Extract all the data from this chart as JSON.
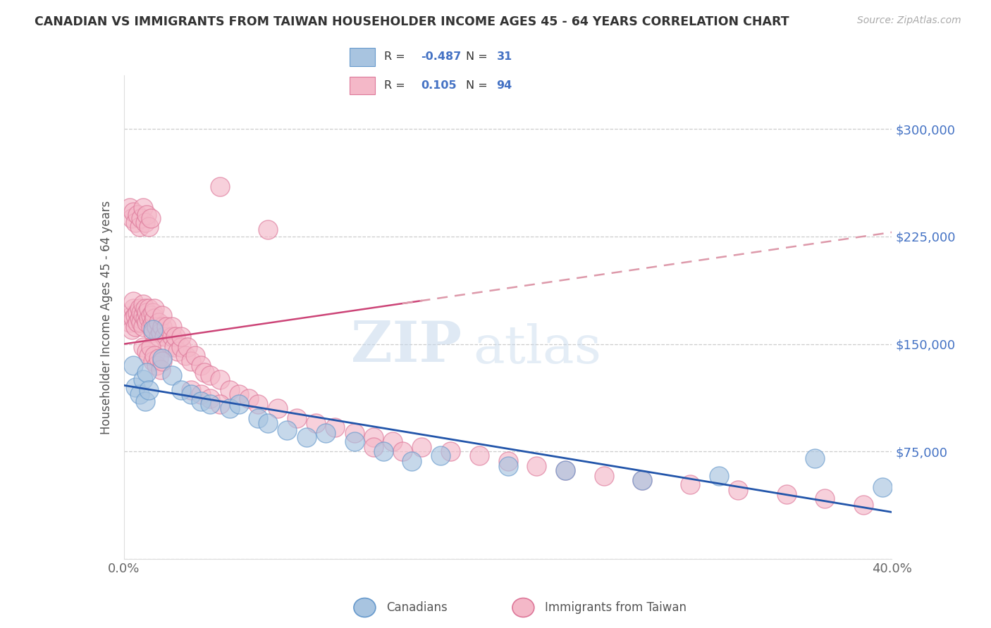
{
  "title": "CANADIAN VS IMMIGRANTS FROM TAIWAN HOUSEHOLDER INCOME AGES 45 - 64 YEARS CORRELATION CHART",
  "source": "Source: ZipAtlas.com",
  "ylabel": "Householder Income Ages 45 - 64 years",
  "xlim": [
    0,
    0.4
  ],
  "ylim": [
    0,
    337500
  ],
  "xticks": [
    0.0,
    0.05,
    0.1,
    0.15,
    0.2,
    0.25,
    0.3,
    0.35,
    0.4
  ],
  "xticklabels": [
    "0.0%",
    "",
    "",
    "",
    "",
    "",
    "",
    "",
    "40.0%"
  ],
  "yticks": [
    0,
    75000,
    150000,
    225000,
    300000
  ],
  "yticklabels": [
    "",
    "$75,000",
    "$150,000",
    "$225,000",
    "$300,000"
  ],
  "canadians_color": "#a8c4e0",
  "canadians_edge": "#6699cc",
  "taiwan_color": "#f4b8c8",
  "taiwan_edge": "#dd7799",
  "canadians_line_color": "#2255aa",
  "taiwan_line_color": "#cc4477",
  "taiwan_dashed_color": "#dd99aa",
  "watermark_zip": "ZIP",
  "watermark_atlas": "atlas",
  "canadians_x": [
    0.005,
    0.006,
    0.008,
    0.01,
    0.011,
    0.012,
    0.013,
    0.015,
    0.02,
    0.025,
    0.03,
    0.035,
    0.04,
    0.045,
    0.055,
    0.06,
    0.07,
    0.075,
    0.085,
    0.095,
    0.105,
    0.12,
    0.135,
    0.15,
    0.165,
    0.2,
    0.23,
    0.27,
    0.31,
    0.36,
    0.395
  ],
  "canadians_y": [
    135000,
    120000,
    115000,
    125000,
    110000,
    130000,
    118000,
    160000,
    140000,
    128000,
    118000,
    115000,
    110000,
    108000,
    105000,
    108000,
    98000,
    95000,
    90000,
    85000,
    88000,
    82000,
    75000,
    68000,
    72000,
    65000,
    62000,
    55000,
    58000,
    70000,
    50000
  ],
  "taiwan_x": [
    0.003,
    0.004,
    0.004,
    0.005,
    0.005,
    0.005,
    0.006,
    0.006,
    0.007,
    0.007,
    0.008,
    0.008,
    0.009,
    0.009,
    0.01,
    0.01,
    0.01,
    0.011,
    0.011,
    0.012,
    0.012,
    0.013,
    0.013,
    0.014,
    0.014,
    0.015,
    0.015,
    0.015,
    0.016,
    0.016,
    0.017,
    0.018,
    0.018,
    0.019,
    0.02,
    0.02,
    0.021,
    0.022,
    0.023,
    0.025,
    0.025,
    0.026,
    0.027,
    0.028,
    0.03,
    0.03,
    0.032,
    0.033,
    0.035,
    0.037,
    0.04,
    0.042,
    0.045,
    0.05,
    0.055,
    0.06,
    0.065,
    0.07,
    0.08,
    0.09,
    0.1,
    0.11,
    0.12,
    0.13,
    0.14,
    0.155,
    0.17,
    0.185,
    0.2,
    0.215,
    0.23,
    0.25,
    0.27,
    0.295,
    0.32,
    0.345,
    0.365,
    0.385,
    0.01,
    0.012,
    0.013,
    0.014,
    0.015,
    0.016,
    0.017,
    0.018,
    0.019,
    0.02,
    0.035,
    0.04,
    0.045,
    0.05,
    0.13,
    0.145
  ],
  "taiwan_y": [
    165000,
    170000,
    160000,
    175000,
    168000,
    180000,
    170000,
    162000,
    172000,
    165000,
    175000,
    168000,
    172000,
    165000,
    170000,
    178000,
    162000,
    168000,
    175000,
    165000,
    172000,
    168000,
    175000,
    162000,
    170000,
    165000,
    172000,
    158000,
    168000,
    175000,
    162000,
    155000,
    165000,
    158000,
    162000,
    170000,
    155000,
    162000,
    148000,
    155000,
    162000,
    148000,
    155000,
    145000,
    148000,
    155000,
    142000,
    148000,
    138000,
    142000,
    135000,
    130000,
    128000,
    125000,
    118000,
    115000,
    112000,
    108000,
    105000,
    98000,
    95000,
    92000,
    88000,
    85000,
    82000,
    78000,
    75000,
    72000,
    68000,
    65000,
    62000,
    58000,
    55000,
    52000,
    48000,
    45000,
    42000,
    38000,
    148000,
    145000,
    142000,
    148000,
    138000,
    142000,
    135000,
    140000,
    132000,
    138000,
    118000,
    115000,
    112000,
    108000,
    78000,
    75000
  ],
  "taiwan_high_x": [
    0.003,
    0.004,
    0.005,
    0.006,
    0.007,
    0.008,
    0.009,
    0.01,
    0.011,
    0.012,
    0.013,
    0.014,
    0.05,
    0.075
  ],
  "taiwan_high_y": [
    245000,
    238000,
    242000,
    235000,
    240000,
    232000,
    238000,
    245000,
    235000,
    240000,
    232000,
    238000,
    260000,
    230000
  ]
}
